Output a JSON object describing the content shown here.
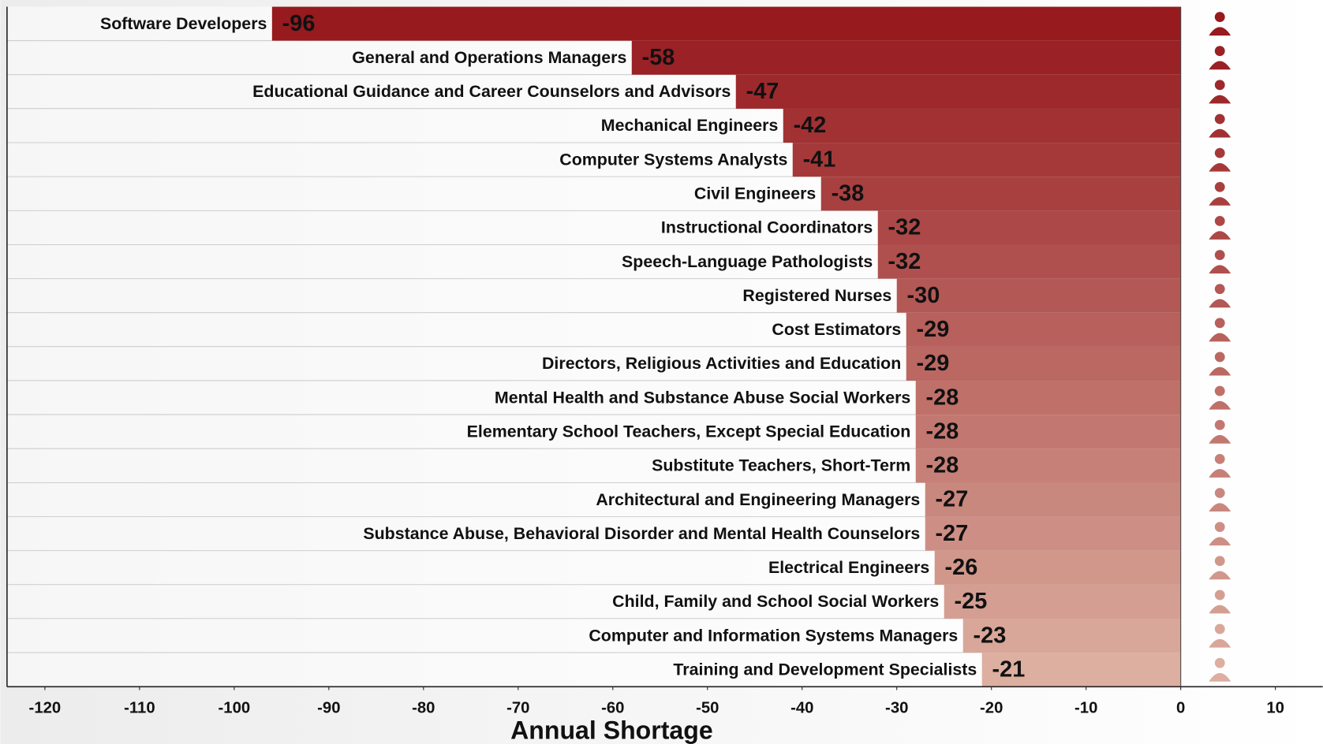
{
  "chart_data": {
    "type": "barh",
    "xlabel": "Annual Shortage",
    "categories": [
      "Software Developers",
      "General and Operations Managers",
      "Educational Guidance and Career Counselors and Advisors",
      "Mechanical Engineers",
      "Computer Systems Analysts",
      "Civil Engineers",
      "Instructional Coordinators",
      "Speech-Language Pathologists",
      "Registered Nurses",
      "Cost Estimators",
      "Directors, Religious Activities and Education",
      "Mental Health and Substance Abuse Social Workers",
      "Elementary School Teachers, Except Special Education",
      "Substitute Teachers, Short-Term",
      "Architectural and Engineering Managers",
      "Substance Abuse, Behavioral Disorder and Mental Health Counselors",
      "Electrical Engineers",
      "Child, Family and School Social Workers",
      "Computer and Information Systems Managers",
      "Training and Development Specialists"
    ],
    "values": [
      -96,
      -58,
      -47,
      -42,
      -41,
      -38,
      -32,
      -32,
      -30,
      -29,
      -29,
      -28,
      -28,
      -28,
      -27,
      -27,
      -26,
      -25,
      -23,
      -21
    ],
    "colors": [
      "#961a1e",
      "#9a2125",
      "#9d292c",
      "#a13133",
      "#a53939",
      "#a84040",
      "#ac4847",
      "#b0504e",
      "#b35855",
      "#b7605c",
      "#bb6862",
      "#bf7069",
      "#c27870",
      "#c68077",
      "#c9887e",
      "#cd8f85",
      "#d1978b",
      "#d49f92",
      "#d8a799",
      "#dcafa0"
    ],
    "xlim": [
      -124,
      15
    ],
    "xticks": [
      -120,
      -110,
      -100,
      -90,
      -80,
      -70,
      -60,
      -50,
      -40,
      -30,
      -20,
      -10,
      0,
      10
    ]
  }
}
